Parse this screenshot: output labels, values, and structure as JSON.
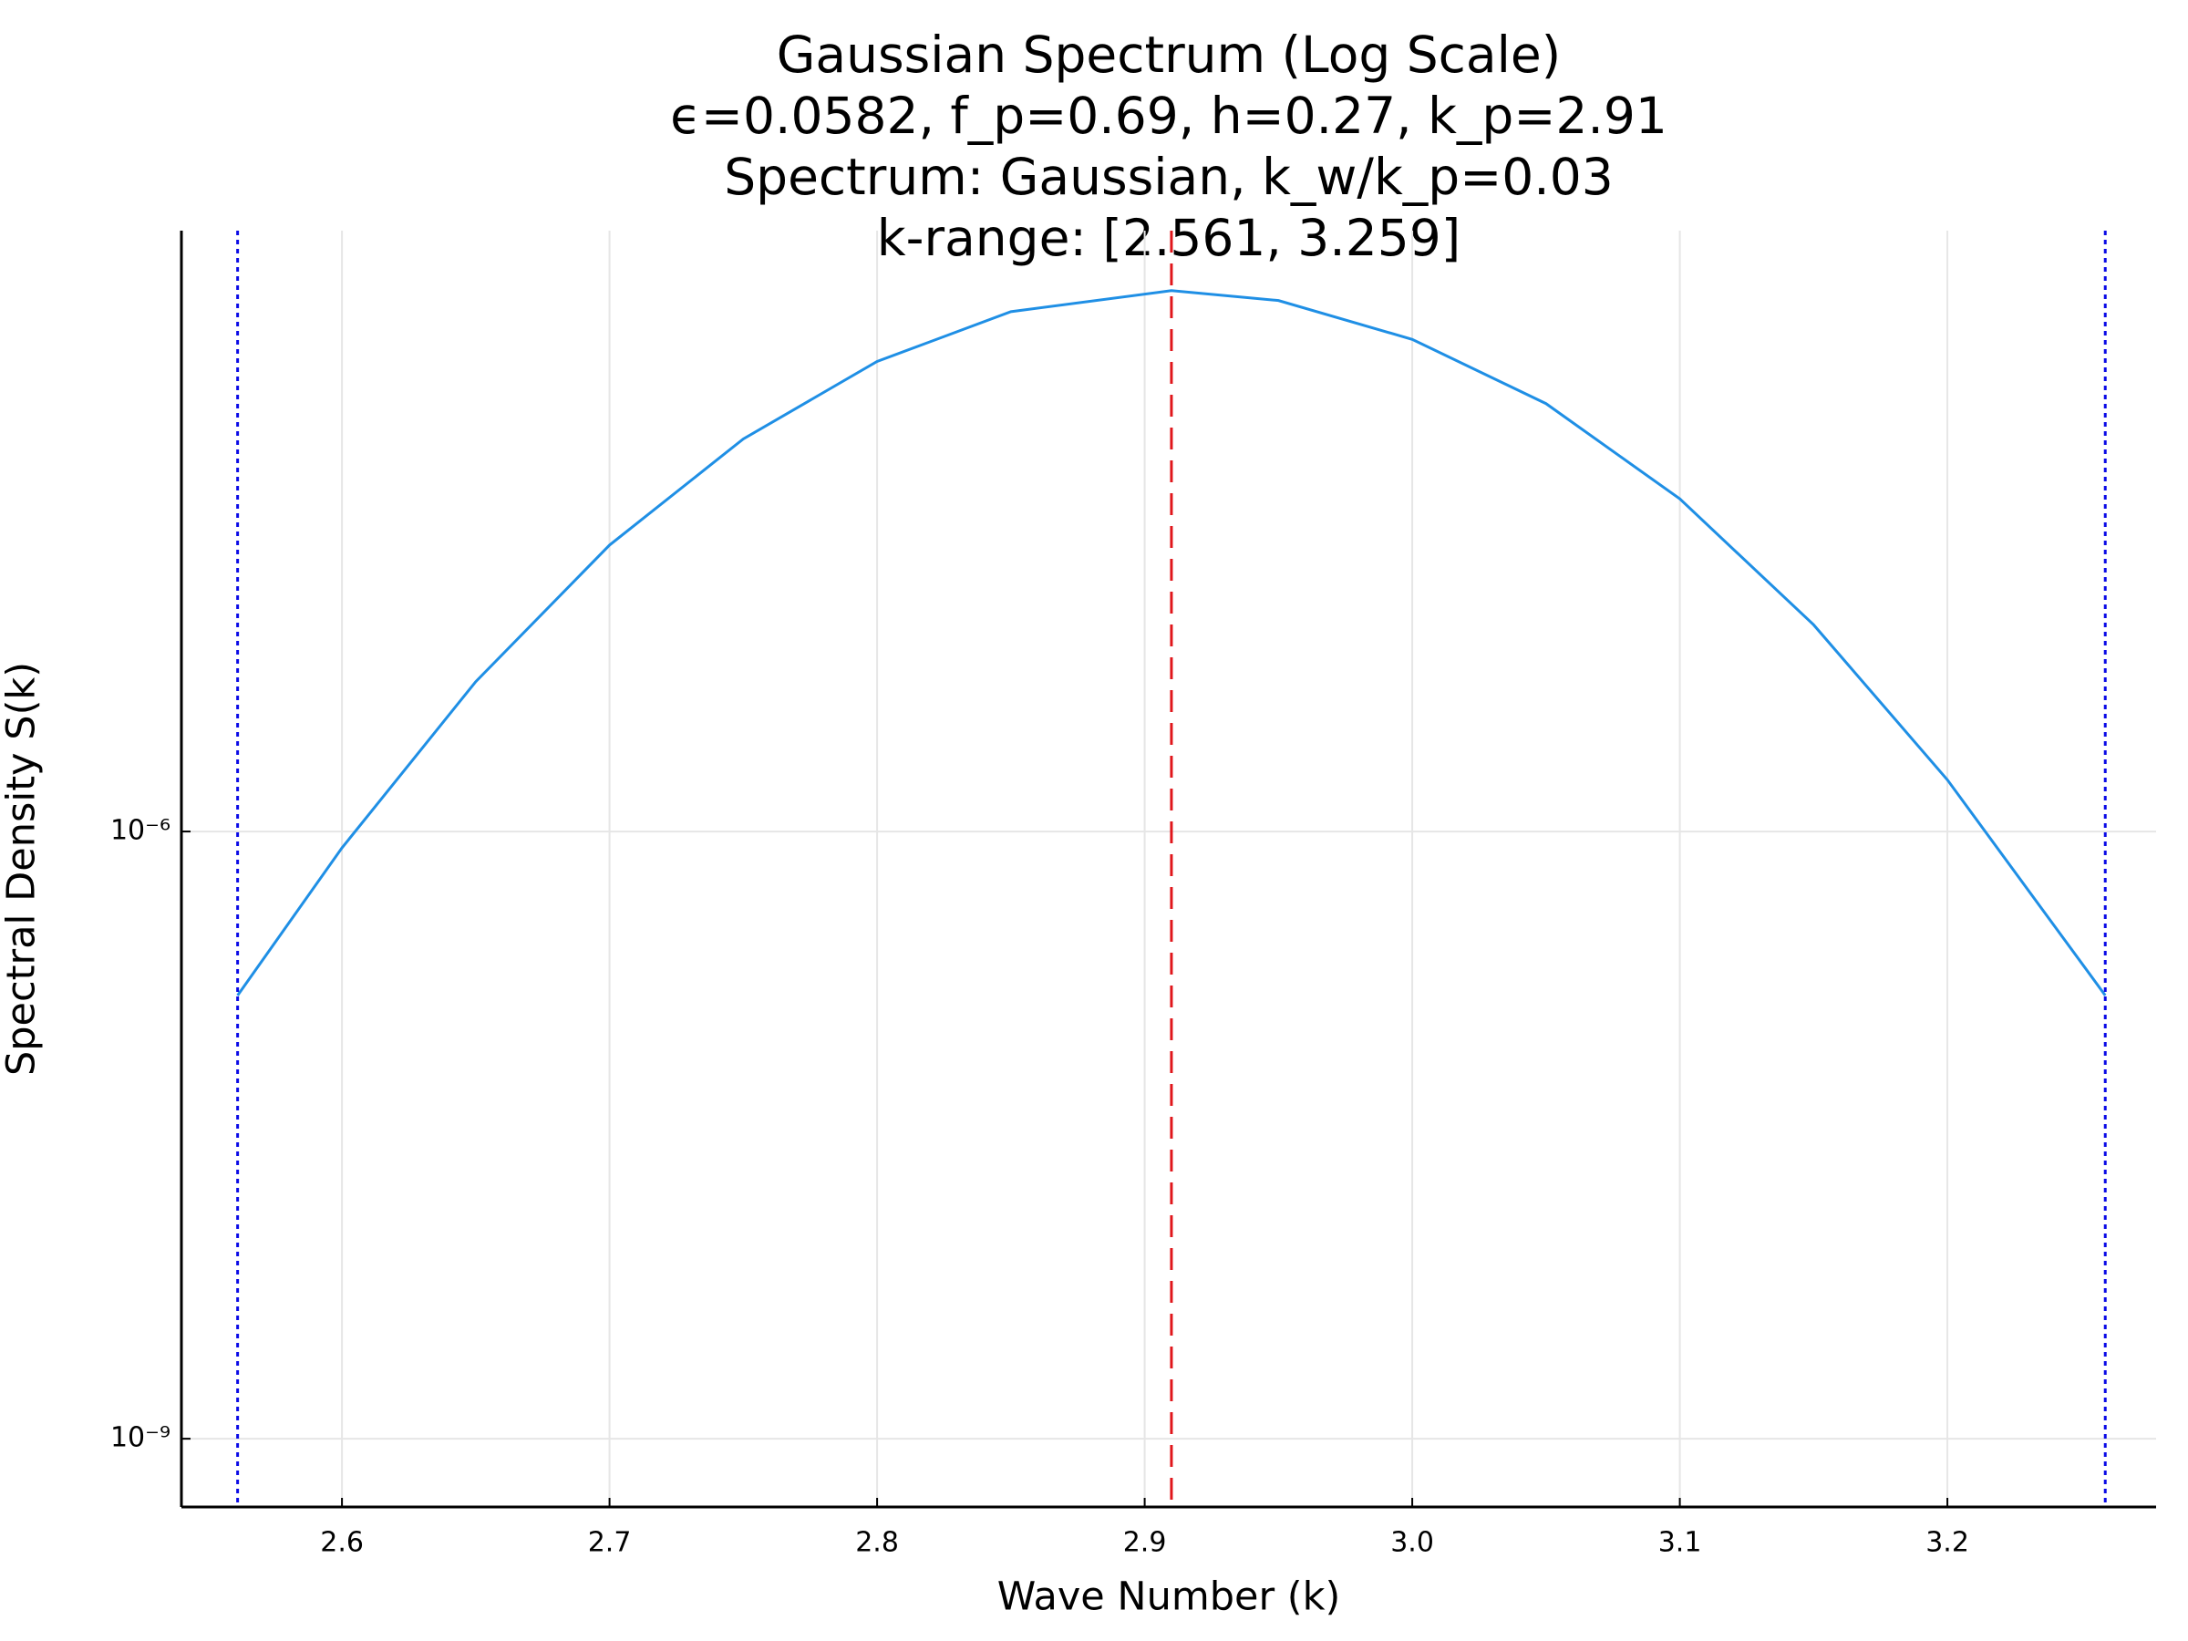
{
  "chart_data": {
    "type": "line",
    "title": [
      "Gaussian Spectrum (Log Scale)",
      "ϵ=0.0582, f_p=0.69, h=0.27, k_p=2.91",
      "Spectrum: Gaussian, k_w/k_p=0.03",
      "k-range: [2.561, 3.259]"
    ],
    "x_label": "Wave Number (k)",
    "y_label": "Spectral Density S(k)",
    "x": [
      2.561,
      2.6,
      2.65,
      2.7,
      2.75,
      2.8,
      2.85,
      2.91,
      2.95,
      3.0,
      3.05,
      3.1,
      3.15,
      3.2,
      3.259
    ],
    "series": [
      {
        "color": "#1f8fe5",
        "values": [
          1.55e-07,
          8.3e-07,
          5.5e-06,
          2.6e-05,
          8.7e-05,
          0.00021,
          0.00037,
          0.00047,
          0.00042,
          0.00027,
          0.00013,
          4.4e-05,
          1.05e-05,
          1.8e-06,
          1.55e-07
        ]
      }
    ],
    "vlines": [
      {
        "x": 2.91,
        "color": "#e0161b",
        "style": "dashed"
      },
      {
        "x": 2.561,
        "color": "#0a0ae6",
        "style": "dotted"
      },
      {
        "x": 3.259,
        "color": "#0a0ae6",
        "style": "dotted"
      }
    ],
    "xlim": [
      2.54,
      3.278
    ],
    "ylim": [
      4.6e-10,
      0.00093
    ],
    "log_y": true,
    "xticks": [
      2.6,
      2.7,
      2.8,
      2.9,
      {
        "value": 3.0,
        "label": "3.0"
      },
      3.1,
      3.2
    ],
    "yticks": [
      {
        "value": 1e-09,
        "label": "10⁻⁹"
      },
      {
        "value": 1e-06,
        "label": "10⁻⁶"
      }
    ],
    "grid": true
  }
}
